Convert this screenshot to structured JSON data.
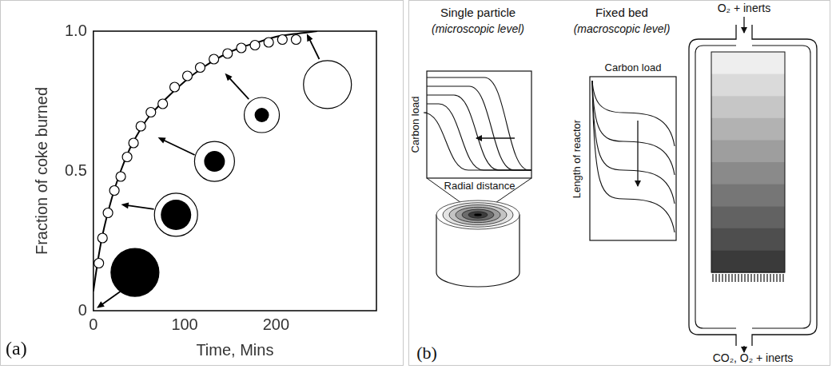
{
  "chart_data": {
    "type": "scatter",
    "x_label": "Time, Mins",
    "y_label": "Fraction of coke burned",
    "xlim": [
      0,
      310
    ],
    "ylim": [
      0,
      1
    ],
    "xticks": [
      0,
      100,
      200
    ],
    "yticks": [
      0,
      0.5,
      {
        "value": 1,
        "label": "1.0"
      }
    ],
    "grid": false,
    "series": [
      {
        "type": "line",
        "color": "#000000",
        "line_style": "solid",
        "marker": "none",
        "x": [
          0,
          5,
          10,
          20,
          30,
          40,
          50,
          60,
          80,
          100,
          120,
          140,
          160,
          180,
          200,
          220,
          245
        ],
        "values": [
          0.07,
          0.18,
          0.27,
          0.4,
          0.5,
          0.58,
          0.64,
          0.69,
          0.76,
          0.82,
          0.87,
          0.91,
          0.94,
          0.96,
          0.98,
          0.99,
          1.0
        ]
      },
      {
        "type": "scatter",
        "color": "#000000",
        "marker": "open_circle",
        "x": [
          6,
          10,
          16,
          23,
          30,
          37,
          44,
          52,
          63,
          76,
          89,
          103,
          117,
          132,
          147,
          162,
          177,
          192,
          207,
          222
        ],
        "values": [
          0.17,
          0.26,
          0.35,
          0.43,
          0.48,
          0.55,
          0.6,
          0.66,
          0.71,
          0.74,
          0.8,
          0.84,
          0.87,
          0.9,
          0.92,
          0.94,
          0.95,
          0.96,
          0.97,
          0.97
        ]
      }
    ]
  },
  "panels": {
    "a": "(a)",
    "b": "(b)"
  },
  "diagram": {
    "single_particle": {
      "title": "Single particle",
      "subtitle": "(microscopic level)",
      "y_label": "Carbon load",
      "x_label": "Radial distance"
    },
    "fixed_bed": {
      "title": "Fixed bed",
      "subtitle": "(macroscopic level)",
      "x_label": "Carbon load",
      "y_label": "Length of reactor",
      "inlet": "O₂ + inerts",
      "outlet": "CO₂, O₂ + inerts"
    }
  }
}
